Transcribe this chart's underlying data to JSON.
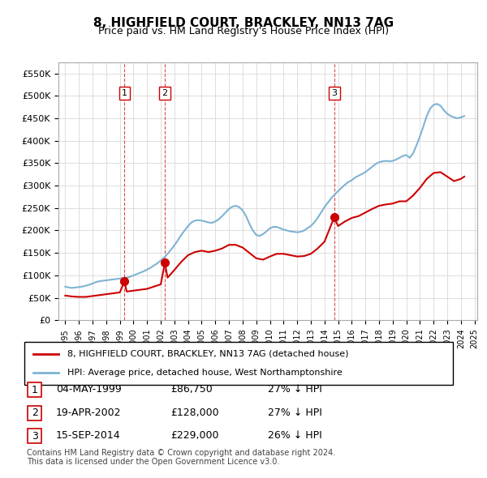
{
  "title": "8, HIGHFIELD COURT, BRACKLEY, NN13 7AG",
  "subtitle": "Price paid vs. HM Land Registry's House Price Index (HPI)",
  "ylabel_ticks": [
    "£0",
    "£50K",
    "£100K",
    "£150K",
    "£200K",
    "£250K",
    "£300K",
    "£350K",
    "£400K",
    "£450K",
    "£500K",
    "£550K"
  ],
  "ytick_values": [
    0,
    50000,
    100000,
    150000,
    200000,
    250000,
    300000,
    350000,
    400000,
    450000,
    500000,
    550000
  ],
  "ylim": [
    0,
    575000
  ],
  "background_color": "#ffffff",
  "grid_color": "#dddddd",
  "hpi_color": "#7fb3d3",
  "sold_color": "#cc0000",
  "sold_dot_color": "#cc0000",
  "vline_color": "#cc0000",
  "sale_points": [
    {
      "date_num": 1999.34,
      "price": 86750,
      "label": "1"
    },
    {
      "date_num": 2002.3,
      "price": 128000,
      "label": "2"
    },
    {
      "date_num": 2014.71,
      "price": 229000,
      "label": "3"
    }
  ],
  "legend_entries": [
    "8, HIGHFIELD COURT, BRACKLEY, NN13 7AG (detached house)",
    "HPI: Average price, detached house, West Northamptonshire"
  ],
  "table_rows": [
    {
      "num": "1",
      "date": "04-MAY-1999",
      "price": "£86,750",
      "hpi": "27% ↓ HPI"
    },
    {
      "num": "2",
      "date": "19-APR-2002",
      "price": "£128,000",
      "hpi": "27% ↓ HPI"
    },
    {
      "num": "3",
      "date": "15-SEP-2014",
      "price": "£229,000",
      "hpi": "26% ↓ HPI"
    }
  ],
  "footer": "Contains HM Land Registry data © Crown copyright and database right 2024.\nThis data is licensed under the Open Government Licence v3.0.",
  "hpi_data": {
    "years": [
      1995.0,
      1995.25,
      1995.5,
      1995.75,
      1996.0,
      1996.25,
      1996.5,
      1996.75,
      1997.0,
      1997.25,
      1997.5,
      1997.75,
      1998.0,
      1998.25,
      1998.5,
      1998.75,
      1999.0,
      1999.25,
      1999.5,
      1999.75,
      2000.0,
      2000.25,
      2000.5,
      2000.75,
      2001.0,
      2001.25,
      2001.5,
      2001.75,
      2002.0,
      2002.25,
      2002.5,
      2002.75,
      2003.0,
      2003.25,
      2003.5,
      2003.75,
      2004.0,
      2004.25,
      2004.5,
      2004.75,
      2005.0,
      2005.25,
      2005.5,
      2005.75,
      2006.0,
      2006.25,
      2006.5,
      2006.75,
      2007.0,
      2007.25,
      2007.5,
      2007.75,
      2008.0,
      2008.25,
      2008.5,
      2008.75,
      2009.0,
      2009.25,
      2009.5,
      2009.75,
      2010.0,
      2010.25,
      2010.5,
      2010.75,
      2011.0,
      2011.25,
      2011.5,
      2011.75,
      2012.0,
      2012.25,
      2012.5,
      2012.75,
      2013.0,
      2013.25,
      2013.5,
      2013.75,
      2014.0,
      2014.25,
      2014.5,
      2014.75,
      2015.0,
      2015.25,
      2015.5,
      2015.75,
      2016.0,
      2016.25,
      2016.5,
      2016.75,
      2017.0,
      2017.25,
      2017.5,
      2017.75,
      2018.0,
      2018.25,
      2018.5,
      2018.75,
      2019.0,
      2019.25,
      2019.5,
      2019.75,
      2020.0,
      2020.25,
      2020.5,
      2020.75,
      2021.0,
      2021.25,
      2021.5,
      2021.75,
      2022.0,
      2022.25,
      2022.5,
      2022.75,
      2023.0,
      2023.25,
      2023.5,
      2023.75,
      2024.0,
      2024.25
    ],
    "values": [
      75000,
      73000,
      72000,
      73000,
      74000,
      75000,
      77000,
      79000,
      82000,
      85000,
      87000,
      88000,
      89000,
      90000,
      91000,
      92000,
      93000,
      94000,
      95000,
      97000,
      100000,
      103000,
      106000,
      109000,
      113000,
      117000,
      122000,
      127000,
      133000,
      140000,
      148000,
      157000,
      167000,
      178000,
      190000,
      200000,
      210000,
      218000,
      222000,
      223000,
      222000,
      220000,
      218000,
      217000,
      220000,
      225000,
      232000,
      240000,
      248000,
      253000,
      255000,
      252000,
      245000,
      232000,
      215000,
      200000,
      190000,
      188000,
      192000,
      198000,
      205000,
      208000,
      208000,
      205000,
      202000,
      200000,
      198000,
      197000,
      196000,
      197000,
      200000,
      205000,
      210000,
      218000,
      228000,
      240000,
      252000,
      262000,
      272000,
      280000,
      288000,
      295000,
      302000,
      308000,
      312000,
      318000,
      322000,
      326000,
      330000,
      336000,
      342000,
      348000,
      352000,
      354000,
      355000,
      354000,
      355000,
      358000,
      362000,
      366000,
      368000,
      362000,
      372000,
      390000,
      410000,
      432000,
      455000,
      472000,
      480000,
      482000,
      478000,
      468000,
      460000,
      455000,
      452000,
      450000,
      452000,
      455000
    ]
  },
  "sold_data": {
    "years": [
      1995.0,
      1995.5,
      1996.0,
      1996.5,
      1997.0,
      1997.5,
      1998.0,
      1998.5,
      1999.0,
      1999.34,
      1999.5,
      2000.0,
      2000.5,
      2001.0,
      2001.5,
      2002.0,
      2002.3,
      2002.5,
      2003.0,
      2003.5,
      2004.0,
      2004.5,
      2005.0,
      2005.5,
      2006.0,
      2006.5,
      2007.0,
      2007.5,
      2008.0,
      2008.5,
      2009.0,
      2009.5,
      2010.0,
      2010.5,
      2011.0,
      2011.5,
      2012.0,
      2012.5,
      2013.0,
      2013.5,
      2014.0,
      2014.71,
      2015.0,
      2015.5,
      2016.0,
      2016.5,
      2017.0,
      2017.5,
      2018.0,
      2018.5,
      2019.0,
      2019.5,
      2020.0,
      2020.5,
      2021.0,
      2021.5,
      2022.0,
      2022.5,
      2023.0,
      2023.5,
      2024.0,
      2024.25
    ],
    "values": [
      55000,
      53000,
      52000,
      52000,
      54000,
      56000,
      58000,
      60000,
      62000,
      86750,
      64000,
      66000,
      68000,
      70000,
      75000,
      80000,
      128000,
      95000,
      112000,
      130000,
      145000,
      152000,
      155000,
      152000,
      155000,
      160000,
      168000,
      168000,
      162000,
      150000,
      138000,
      135000,
      142000,
      148000,
      148000,
      145000,
      142000,
      143000,
      148000,
      160000,
      175000,
      229000,
      210000,
      220000,
      228000,
      232000,
      240000,
      248000,
      255000,
      258000,
      260000,
      265000,
      265000,
      278000,
      295000,
      315000,
      328000,
      330000,
      320000,
      310000,
      315000,
      320000
    ]
  }
}
